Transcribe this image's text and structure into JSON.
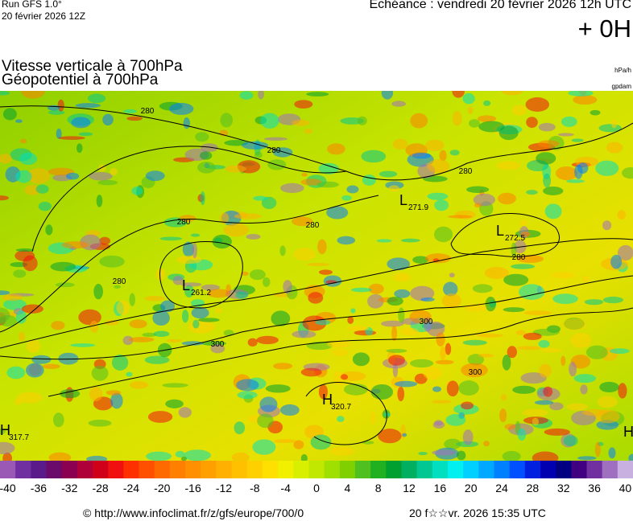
{
  "header": {
    "run": "Run GFS 1.0°",
    "date": "20 février 2026 12Z",
    "echeance": "Echéance : vendredi 20 février 2026 12h UTC",
    "lead": "+ 0H"
  },
  "titles": {
    "line1": "Vitesse verticale à 700hPa",
    "line2": "Géopotentiel à 700hPa",
    "unit1": "hPa/h",
    "unit2": "gpdam"
  },
  "map": {
    "contour_labels": [
      "280",
      "280",
      "280",
      "280",
      "280",
      "280",
      "280",
      "300",
      "300",
      "300"
    ],
    "centers": [
      {
        "letter": "L",
        "value": "261.2"
      },
      {
        "letter": "L",
        "value": "271.9"
      },
      {
        "letter": "L",
        "value": "272.5"
      },
      {
        "letter": "H",
        "value": "320.7"
      },
      {
        "letter": "H",
        "value": "317.7"
      },
      {
        "letter": "H",
        "value": ""
      }
    ]
  },
  "colorbar": {
    "colors": [
      "#9b59b6",
      "#7030a0",
      "#5a1a8a",
      "#6a0a6a",
      "#8b0050",
      "#b0003a",
      "#d0001a",
      "#f01010",
      "#ff3000",
      "#ff5000",
      "#ff6a00",
      "#ff8000",
      "#ff9000",
      "#ffa000",
      "#ffb000",
      "#ffc000",
      "#ffd000",
      "#ffe000",
      "#f0f000",
      "#d8f000",
      "#c0e800",
      "#a0e000",
      "#80d000",
      "#50c020",
      "#20b020",
      "#00a030",
      "#00b060",
      "#00c890",
      "#00e0c0",
      "#00f0f0",
      "#00d0ff",
      "#00a8ff",
      "#0080ff",
      "#0050ff",
      "#0020e0",
      "#0000b0",
      "#000080",
      "#400080",
      "#7030a0",
      "#a070c0",
      "#c8b0e0"
    ],
    "ticks": [
      -40,
      -36,
      -32,
      -28,
      -24,
      -20,
      -16,
      -12,
      -8,
      -4,
      0,
      4,
      8,
      12,
      16,
      20,
      24,
      28,
      32,
      36,
      40
    ]
  },
  "footer": {
    "url": "© http://www.infoclimat.fr/z/gfs/europe/700/0",
    "stamp": "20 f☆☆vr. 2026 15:35 UTC"
  }
}
